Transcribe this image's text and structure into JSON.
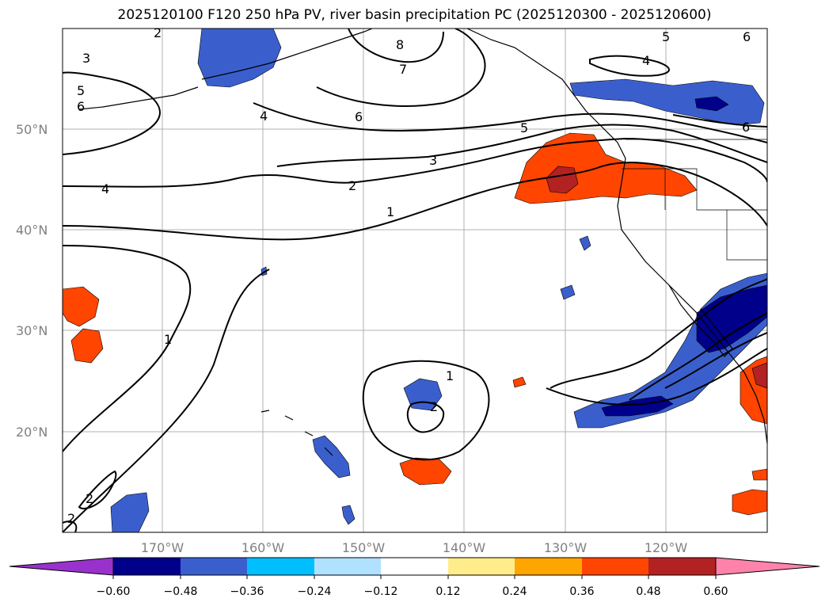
{
  "title": "2025120100 F120 250 hPa PV, river basin precipitation PC (2025120300 - 2025120600)",
  "lat_labels": [
    "50°N",
    "40°N",
    "30°N",
    "20°N"
  ],
  "lon_labels": [
    "170°W",
    "160°W",
    "150°W",
    "140°W",
    "130°W",
    "120°W"
  ],
  "contour_labels": [
    "2",
    "3",
    "5",
    "6",
    "4",
    "8",
    "7",
    "6",
    "4",
    "5",
    "3",
    "2",
    "1",
    "1",
    "1",
    "2",
    "2",
    "2",
    "5",
    "6",
    "4",
    "6"
  ],
  "colorbar": {
    "tick_labels": [
      "−0.60",
      "−0.48",
      "−0.36",
      "−0.24",
      "−0.12",
      "0.12",
      "0.24",
      "0.36",
      "0.48",
      "0.60"
    ],
    "colors": [
      "#9932CC",
      "#00008B",
      "#3A5FCD",
      "#00BFFF",
      "#B0E2FF",
      "#FFFFFF",
      "#FFEC8B",
      "#FFA500",
      "#FF4500",
      "#B22222",
      "#FF82AB"
    ]
  }
}
